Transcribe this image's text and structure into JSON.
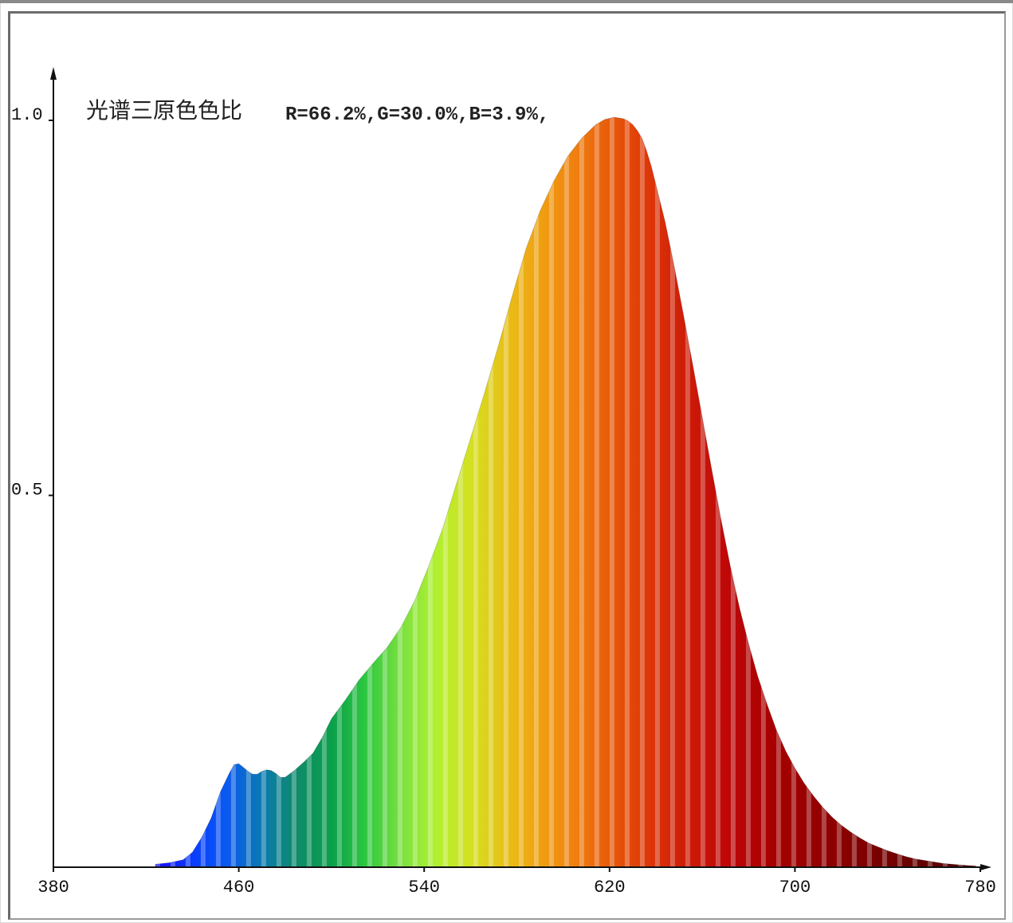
{
  "chart_data": {
    "type": "area",
    "annotation": {
      "label": "光谱三原色色比",
      "ratio_text": "R=66.2%,G=30.0%,B=3.9%,"
    },
    "xlim": [
      380,
      780
    ],
    "ylim": [
      0,
      1.0
    ],
    "x_ticks": [
      380,
      460,
      540,
      620,
      700,
      780
    ],
    "x_tick_labels": [
      "380",
      "460",
      "540",
      "620",
      "700",
      "780"
    ],
    "y_ticks": [
      0.5,
      1.0
    ],
    "y_tick_labels": [
      "0.5",
      "1.0"
    ],
    "grid": false,
    "fill": "wavelength spectrum colors",
    "series": [
      {
        "x": [
          424,
          430,
          436,
          440,
          444,
          448,
          452,
          456,
          458,
          460,
          462,
          464,
          466,
          468,
          470,
          472,
          474,
          476,
          478,
          480,
          484,
          488,
          492,
          496,
          500,
          506,
          512,
          518,
          524,
          530,
          536,
          542,
          548,
          554,
          560,
          566,
          572,
          578,
          584,
          590,
          596,
          602,
          608,
          614,
          618,
          622,
          626,
          628,
          630,
          632,
          634,
          636,
          638,
          640,
          644,
          648,
          652,
          656,
          660,
          664,
          668,
          672,
          676,
          680,
          684,
          688,
          692,
          696,
          700,
          704,
          708,
          712,
          716,
          720,
          724,
          728,
          732,
          736,
          740,
          744,
          748,
          752,
          756,
          760,
          764,
          768,
          772,
          776,
          778
        ],
        "y": [
          0.004,
          0.006,
          0.01,
          0.02,
          0.04,
          0.065,
          0.1,
          0.126,
          0.137,
          0.138,
          0.133,
          0.128,
          0.124,
          0.124,
          0.128,
          0.13,
          0.129,
          0.125,
          0.12,
          0.12,
          0.129,
          0.14,
          0.152,
          0.173,
          0.198,
          0.223,
          0.25,
          0.272,
          0.293,
          0.32,
          0.356,
          0.402,
          0.452,
          0.512,
          0.572,
          0.632,
          0.695,
          0.762,
          0.825,
          0.875,
          0.915,
          0.948,
          0.972,
          0.99,
          0.997,
          1.0,
          0.998,
          0.995,
          0.99,
          0.982,
          0.972,
          0.955,
          0.935,
          0.91,
          0.86,
          0.8,
          0.735,
          0.668,
          0.6,
          0.532,
          0.465,
          0.403,
          0.347,
          0.298,
          0.254,
          0.217,
          0.183,
          0.155,
          0.132,
          0.112,
          0.095,
          0.08,
          0.067,
          0.056,
          0.047,
          0.039,
          0.032,
          0.027,
          0.022,
          0.018,
          0.014,
          0.011,
          0.009,
          0.007,
          0.005,
          0.004,
          0.003,
          0.002,
          0.002
        ]
      }
    ]
  }
}
